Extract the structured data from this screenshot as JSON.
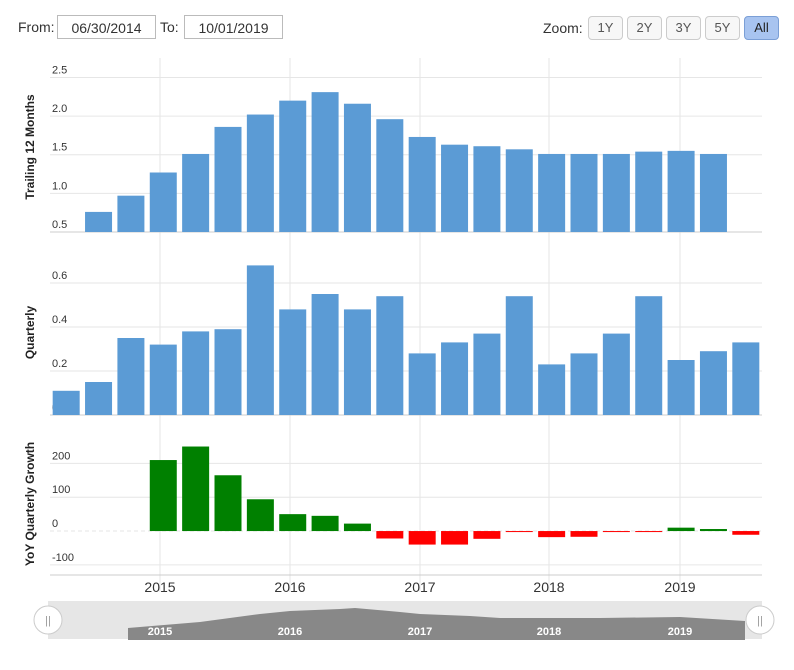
{
  "toolbar": {
    "from_label": "From:",
    "from_value": "06/30/2014",
    "to_label": "To:",
    "to_value": "10/01/2019",
    "zoom_label": "Zoom:",
    "zoom_options": [
      "1Y",
      "2Y",
      "3Y",
      "5Y",
      "All"
    ],
    "zoom_selected": "All"
  },
  "colors": {
    "bar": "#5b9bd5",
    "positive": "#008000",
    "negative": "#ff0000",
    "grid": "#e6e6e6",
    "navigator_fill": "#888888"
  },
  "chart_data": [
    {
      "type": "bar",
      "ylabel": "Trailing 12 Months",
      "yticks": [
        0.5,
        1.0,
        1.5,
        2.0,
        2.5
      ],
      "ylim": [
        0.5,
        2.7
      ],
      "x": [
        "2014-06-30",
        "2014-09-30",
        "2014-12-31",
        "2015-03-31",
        "2015-06-30",
        "2015-09-30",
        "2015-12-31",
        "2016-03-31",
        "2016-06-30",
        "2016-09-30",
        "2016-12-31",
        "2017-03-31",
        "2017-06-30",
        "2017-09-30",
        "2017-12-31",
        "2018-03-31",
        "2018-06-30",
        "2018-09-30",
        "2018-12-31",
        "2019-03-31",
        "2019-06-30",
        "2019-09-30"
      ],
      "values": [
        null,
        0.76,
        0.97,
        1.27,
        1.51,
        1.86,
        2.02,
        2.2,
        2.31,
        2.16,
        1.96,
        1.73,
        1.63,
        1.61,
        1.57,
        1.51,
        1.51,
        1.51,
        1.54,
        1.55,
        1.51,
        null
      ],
      "grid": true
    },
    {
      "type": "bar",
      "ylabel": "Quarterly",
      "yticks": [
        0.0,
        0.2,
        0.4,
        0.6
      ],
      "ylim": [
        0.0,
        0.75
      ],
      "x": [
        "2014-06-30",
        "2014-09-30",
        "2014-12-31",
        "2015-03-31",
        "2015-06-30",
        "2015-09-30",
        "2015-12-31",
        "2016-03-31",
        "2016-06-30",
        "2016-09-30",
        "2016-12-31",
        "2017-03-31",
        "2017-06-30",
        "2017-09-30",
        "2017-12-31",
        "2018-03-31",
        "2018-06-30",
        "2018-09-30",
        "2018-12-31",
        "2019-03-31",
        "2019-06-30",
        "2019-09-30"
      ],
      "values": [
        0.11,
        0.15,
        0.35,
        0.32,
        0.38,
        0.39,
        0.68,
        0.48,
        0.55,
        0.48,
        0.54,
        0.28,
        0.33,
        0.37,
        0.54,
        0.23,
        0.28,
        0.37,
        0.54,
        0.25,
        0.29,
        0.33
      ],
      "grid": true
    },
    {
      "type": "bar",
      "ylabel": "YoY Quarterly Growth",
      "yticks": [
        -100,
        0,
        100,
        200
      ],
      "ylim": [
        -130,
        290
      ],
      "x": [
        "2014-06-30",
        "2014-09-30",
        "2014-12-31",
        "2015-03-31",
        "2015-06-30",
        "2015-09-30",
        "2015-12-31",
        "2016-03-31",
        "2016-06-30",
        "2016-09-30",
        "2016-12-31",
        "2017-03-31",
        "2017-06-30",
        "2017-09-30",
        "2017-12-31",
        "2018-03-31",
        "2018-06-30",
        "2018-09-30",
        "2018-12-31",
        "2019-03-31",
        "2019-06-30",
        "2019-09-30"
      ],
      "values": [
        null,
        null,
        null,
        210,
        250,
        165,
        94,
        50,
        45,
        22,
        -22,
        -40,
        -40,
        -23,
        -3,
        -18,
        -17,
        -3,
        -3,
        10,
        6,
        -11
      ],
      "grid": true
    }
  ],
  "x_axis": {
    "tick_labels": [
      "2015",
      "2016",
      "2017",
      "2018",
      "2019"
    ]
  },
  "navigator": {
    "labels": [
      "2015",
      "2016",
      "2017",
      "2018",
      "2019"
    ],
    "handle_glyph": "||"
  }
}
